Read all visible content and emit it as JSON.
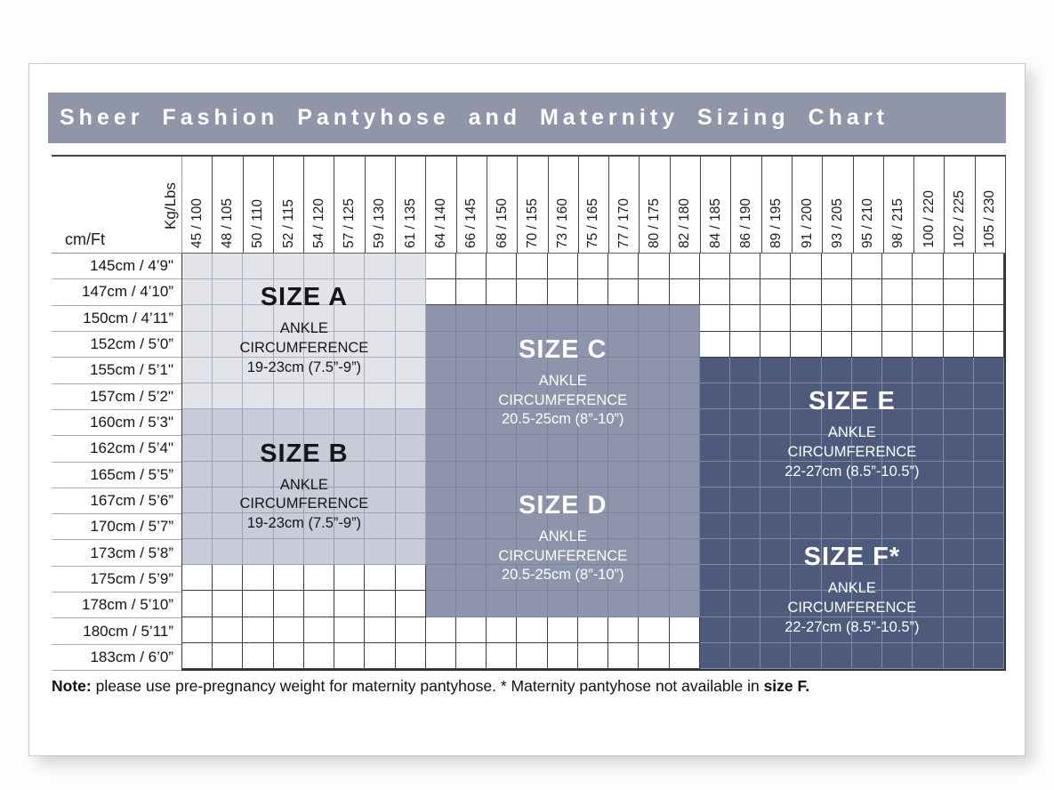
{
  "title": "Sheer Fashion Pantyhose and Maternity Sizing Chart",
  "colors": {
    "title_bar_bg": "#9095a8",
    "title_text": "#ffffff",
    "white_cell_line": "#3c4046",
    "size_a_fill": "#e2e4ea",
    "size_b_fill": "#c8ccd9",
    "size_cd_fill": "#8d95ad",
    "size_ef_fill": "#4e5a7b"
  },
  "table": {
    "weight_unit_label": "Kg/Lbs",
    "height_unit_label": "cm/Ft",
    "sizes": [
      {
        "id": "a",
        "title": "SIZE A",
        "ankle_label": "ANKLE CIRCUMFERENCE",
        "range": "19-23cm (7.5”-9”)",
        "col_start": 1,
        "col_end": 8,
        "row_start": 1,
        "row_end": 6,
        "fill": "#e2e4ea",
        "grid_line": "#a9aebc",
        "text_color": "#161618"
      },
      {
        "id": "b",
        "title": "SIZE B",
        "ankle_label": "ANKLE CIRCUMFERENCE",
        "range": "19-23cm (7.5”-9”)",
        "col_start": 1,
        "col_end": 8,
        "row_start": 7,
        "row_end": 12,
        "fill": "#c8ccd9",
        "grid_line": "#9ba1b3",
        "text_color": "#161618"
      },
      {
        "id": "c",
        "title": "SIZE C",
        "ankle_label": "ANKLE CIRCUMFERENCE",
        "range": "20.5-25cm (8”-10”)",
        "col_start": 9,
        "col_end": 17,
        "row_start": 3,
        "row_end": 8,
        "fill": "#8d95ad",
        "grid_line": "#7982a0",
        "text_color": "#ffffff"
      },
      {
        "id": "d",
        "title": "SIZE D",
        "ankle_label": "ANKLE CIRCUMFERENCE",
        "range": "20.5-25cm (8”-10”)",
        "col_start": 9,
        "col_end": 17,
        "row_start": 9,
        "row_end": 14,
        "fill": "#8d95ad",
        "grid_line": "#7982a0",
        "text_color": "#ffffff"
      },
      {
        "id": "e",
        "title": "SIZE E",
        "ankle_label": "ANKLE CIRCUMFERENCE",
        "range": "22-27cm (8.5”-10.5”)",
        "col_start": 18,
        "col_end": 27,
        "row_start": 5,
        "row_end": 10,
        "fill": "#4e5a7b",
        "grid_line": "#848a9e",
        "text_color": "#ffffff"
      },
      {
        "id": "f",
        "title": "SIZE F*",
        "ankle_label": "ANKLE CIRCUMFERENCE",
        "range": "22-27cm (8.5”-10.5”)",
        "col_start": 18,
        "col_end": 27,
        "row_start": 11,
        "row_end": 16,
        "fill": "#4e5a7b",
        "grid_line": "#848a9e",
        "text_color": "#ffffff"
      }
    ]
  },
  "note": {
    "prefix": "Note:",
    "body": " please use pre-pregnancy weight for maternity pantyhose. * Maternity pantyhose not available in ",
    "bold_suffix": "size F."
  },
  "chart_data": {
    "type": "heatmap",
    "title": "Sheer Fashion Pantyhose and Maternity Sizing Chart",
    "x_axis": {
      "label": "Kg/Lbs",
      "values": [
        "45 / 100",
        "48 / 105",
        "50 / 110",
        "52 / 115",
        "54 / 120",
        "57 / 125",
        "59 / 130",
        "61 / 135",
        "64 / 140",
        "66 / 145",
        "68 / 150",
        "70 / 155",
        "73 / 160",
        "75 / 165",
        "77 / 170",
        "80 / 175",
        "82 / 180",
        "84 / 185",
        "86 / 190",
        "89 / 195",
        "91 / 200",
        "93 / 205",
        "95 / 210",
        "98 / 215",
        "100 / 220",
        "102 / 225",
        "105 / 230"
      ]
    },
    "y_axis": {
      "label": "cm/Ft",
      "values": [
        "145cm / 4’9\"",
        "147cm / 4’10”",
        "150cm / 4’11”",
        "152cm / 5’0”",
        "155cm / 5’1\"",
        "157cm / 5’2\"",
        "160cm / 5’3\"",
        "162cm / 5’4\"",
        "165cm / 5’5”",
        "167cm / 5’6”",
        "170cm / 5’7”",
        "173cm / 5’8”",
        "175cm / 5’9”",
        "178cm / 5’10”",
        "180cm / 5’11”",
        "183cm / 6’0”"
      ]
    },
    "regions": [
      {
        "size": "A",
        "weight_range": "45/100 to 61/135 kg/lbs",
        "height_range": "145cm/4’9\" to 157cm/5’2\"",
        "ankle_circumference": "19-23cm (7.5”-9”)"
      },
      {
        "size": "B",
        "weight_range": "45/100 to 61/135 kg/lbs",
        "height_range": "160cm/5’3\" to 173cm/5’8”",
        "ankle_circumference": "19-23cm (7.5”-9”)"
      },
      {
        "size": "C",
        "weight_range": "64/140 to 84/185 kg/lbs",
        "height_range": "150cm/4’11” to 162cm/5’4\"",
        "ankle_circumference": "20.5-25cm (8”-10”)"
      },
      {
        "size": "D",
        "weight_range": "64/140 to 84/185 kg/lbs",
        "height_range": "165cm/5’5” to 178cm/5’10”",
        "ankle_circumference": "20.5-25cm (8”-10”)"
      },
      {
        "size": "E",
        "weight_range": "86/190 to 105/230 kg/lbs",
        "height_range": "155cm/5’1\" to 167cm/5’6”",
        "ankle_circumference": "22-27cm (8.5”-10.5”)"
      },
      {
        "size": "F*",
        "weight_range": "86/190 to 105/230 kg/lbs",
        "height_range": "170cm/5’7” to 183cm/6’0”",
        "ankle_circumference": "22-27cm (8.5”-10.5”)"
      }
    ],
    "legend_position": "in-cell labels",
    "grid": true
  }
}
